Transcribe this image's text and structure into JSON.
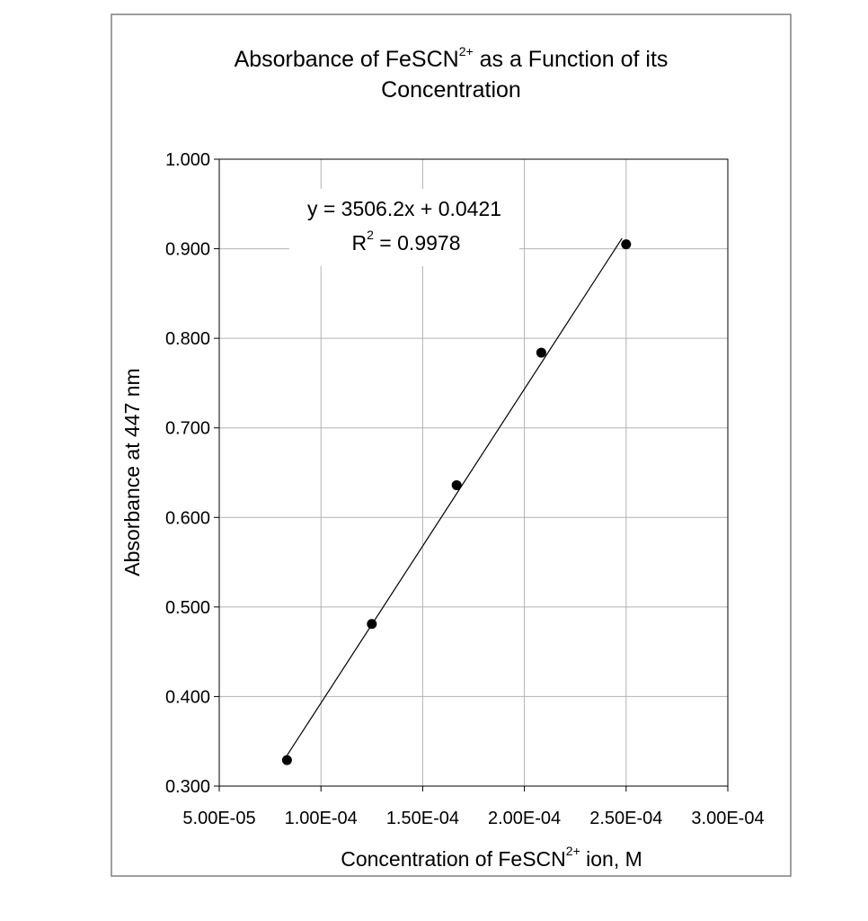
{
  "chart_data": {
    "type": "scatter",
    "title": {
      "line1_pre": "Absorbance of FeSCN",
      "line1_sup": "2+",
      "line1_post": " as a Function of its",
      "line2": "Concentration"
    },
    "xlabel": {
      "pre": "Concentration of FeSCN",
      "sup": "2+",
      "post": "  ion, M"
    },
    "ylabel": "Absorbance at 447 nm",
    "xlim": [
      5e-05,
      0.0003
    ],
    "ylim": [
      0.3,
      1.0
    ],
    "x_ticks": [
      5e-05,
      0.0001,
      0.00015,
      0.0002,
      0.00025,
      0.0003
    ],
    "x_tick_labels": [
      "5.00E-05",
      "1.00E-04",
      "1.50E-04",
      "2.00E-04",
      "2.50E-04",
      "3.00E-04"
    ],
    "y_ticks": [
      0.3,
      0.4,
      0.5,
      0.6,
      0.7,
      0.8,
      0.9,
      1.0
    ],
    "y_tick_labels": [
      "0.300",
      "0.400",
      "0.500",
      "0.600",
      "0.700",
      "0.800",
      "0.900",
      "1.000"
    ],
    "grid": true,
    "series": [
      {
        "x": [
          8.33e-05,
          0.000125,
          0.0001667,
          0.0002083,
          0.00025
        ],
        "y": [
          0.329,
          0.481,
          0.636,
          0.784,
          0.905
        ],
        "color": "#000000"
      }
    ],
    "trendline": {
      "slope": 3506.2,
      "intercept": 0.0421,
      "x_range": [
        8.33e-05,
        0.000248
      ],
      "equation": "y = 3506.2x + 0.0421",
      "r2_pre": "R",
      "r2_sup": "2",
      "r2_post": " = 0.9978"
    }
  }
}
